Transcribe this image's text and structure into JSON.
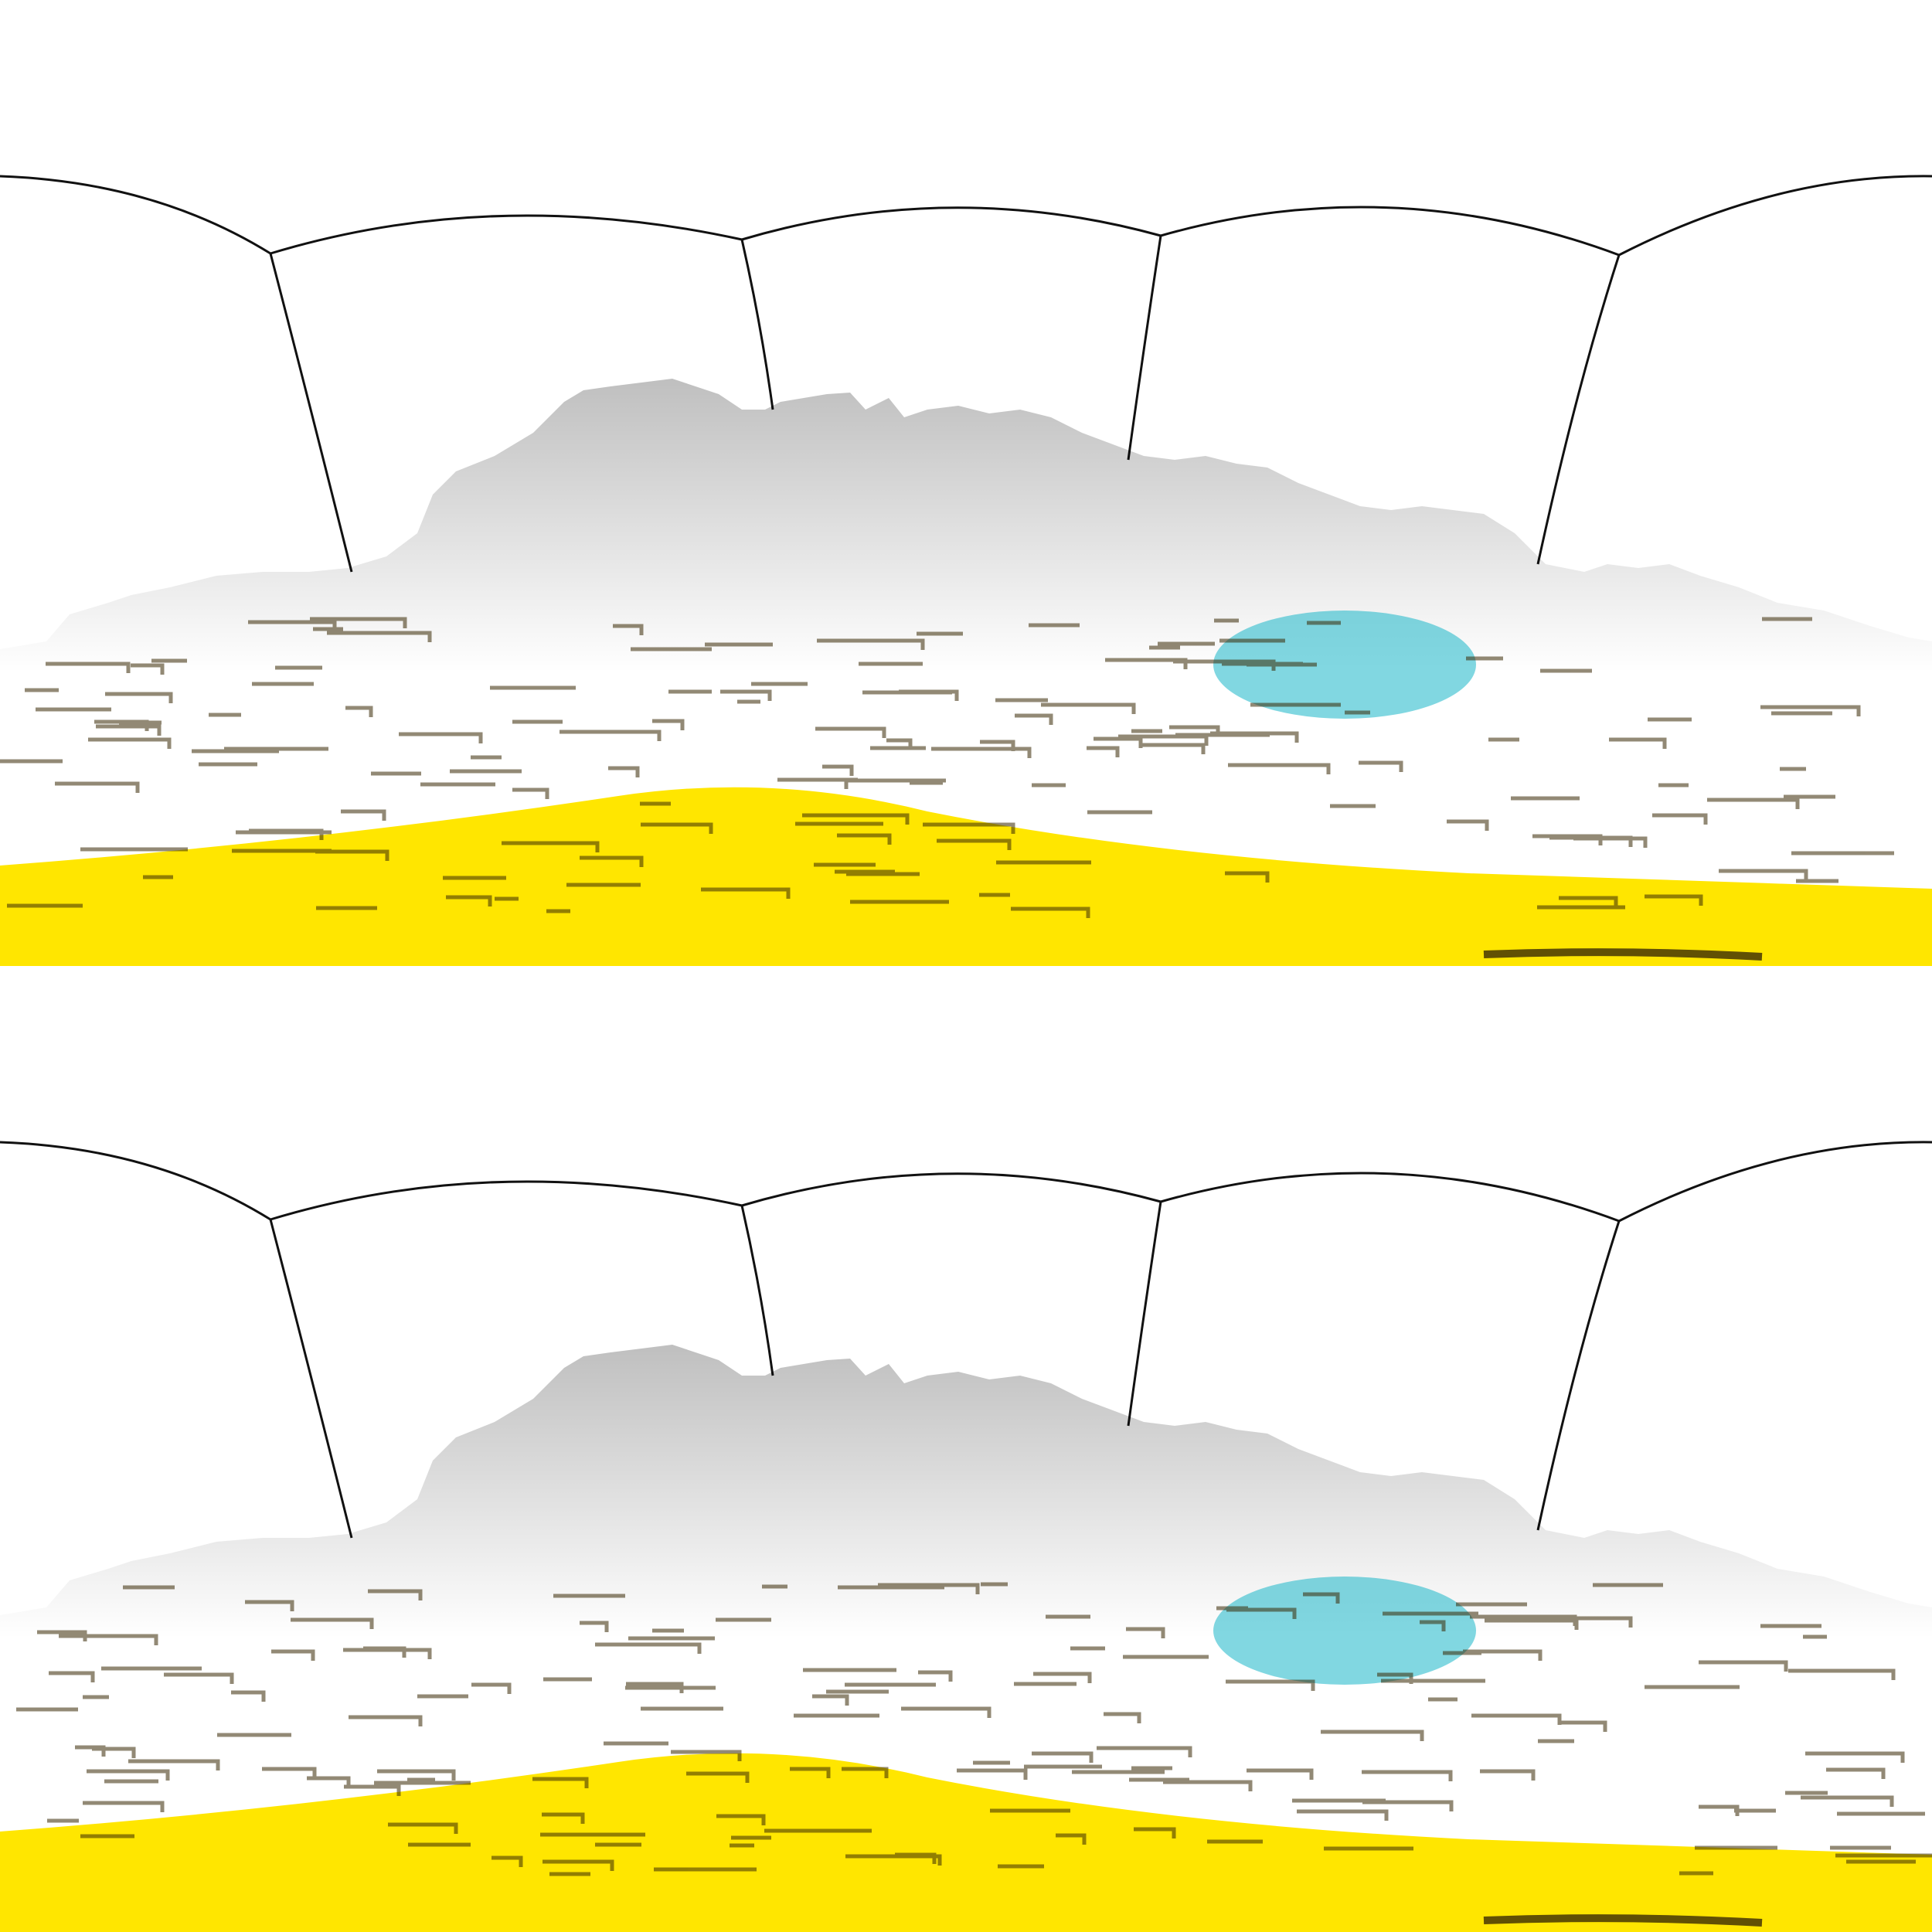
{
  "scene": {
    "panels": [
      {
        "id": "top",
        "description_icon": "terrain-panorama"
      },
      {
        "id": "bottom",
        "description_icon": "terrain-panorama"
      }
    ],
    "palette": {
      "background": "#ffffff",
      "outline": "#111111",
      "peak": "#d42a0c",
      "high": "#e8720e",
      "mid_high": "#c98a12",
      "mid": "#f2d400",
      "ground": "#ffe600",
      "low": "#7fe31a",
      "lower": "#22d422",
      "deep": "#1ab7c9",
      "shadow": "#3a2a05"
    }
  }
}
